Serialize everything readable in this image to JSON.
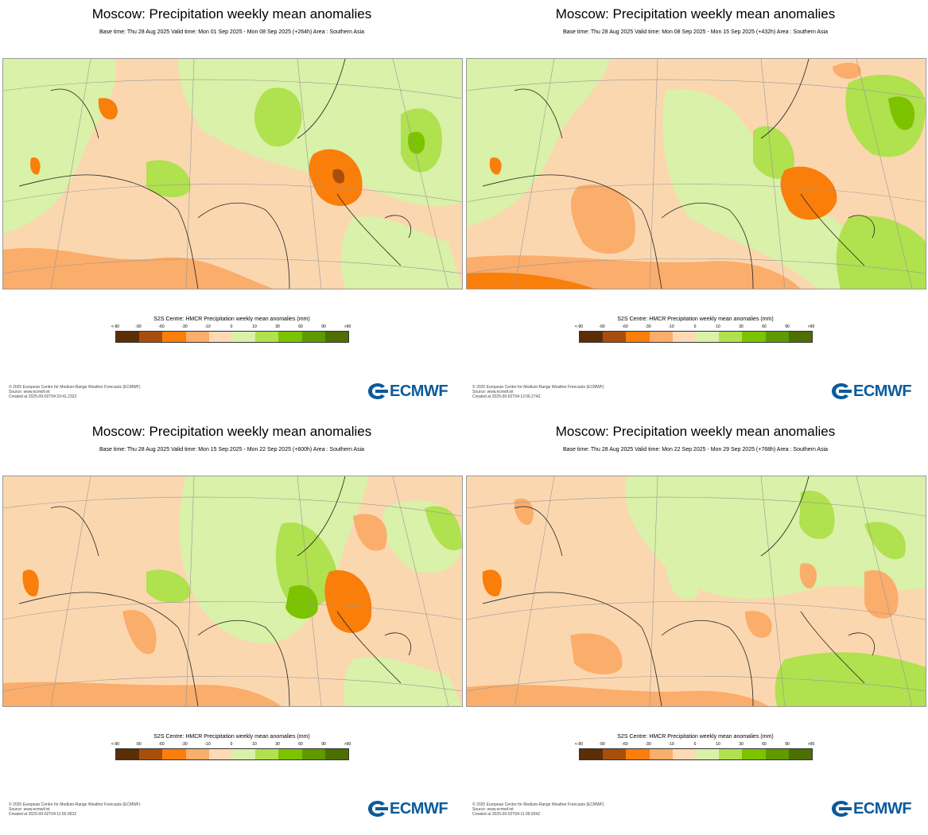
{
  "colors": {
    "logo": "#0a5a9c",
    "legend_bins": [
      "#5c2e06",
      "#a84e0c",
      "#f97e0a",
      "#fbad6b",
      "#fdd9b4",
      "#d9f1a8",
      "#b0e14f",
      "#7cc300",
      "#5f9a00",
      "#4c6f00"
    ]
  },
  "legend": {
    "title": "S2S Centre: HMCR Precipitation weekly mean anomalies (mm)",
    "ticks": [
      "<-90",
      "-90",
      "-60",
      "-30",
      "-10",
      "0",
      "10",
      "30",
      "60",
      "90",
      ">90"
    ]
  },
  "footer": {
    "copyright": "© 2025 European Centre for Medium-Range Weather Forecasts (ECMWF)",
    "source": "Source: www.ecmwf.int"
  },
  "logo_text": "ECMWF",
  "panels": [
    {
      "title": "Moscow: Precipitation weekly mean anomalies",
      "subtitle": "Base time: Thu 28 Aug 2025 Valid time: Mon 01 Sep 2025 - Mon 08 Sep 2025 (+264h) Area : Southern Asia",
      "created": "Created at 2025-09-02T04:10:41.232Z"
    },
    {
      "title": "Moscow: Precipitation weekly mean anomalies",
      "subtitle": "Base time: Thu 28 Aug 2025 Valid time: Mon 08 Sep 2025 - Mon 15 Sep 2025 (+432h) Area : Southern Asia",
      "created": "Created at 2025-09-02T04:12:06.274Z"
    },
    {
      "title": "Moscow: Precipitation weekly mean anomalies",
      "subtitle": "Base time: Thu 28 Aug 2025 Valid time: Mon 15 Sep 2025 - Mon 22 Sep 2025 (+600h) Area : Southern Asia",
      "created": "Created at 2025-09-02T04:11:55.063Z"
    },
    {
      "title": "Moscow: Precipitation weekly mean anomalies",
      "subtitle": "Base time: Thu 28 Aug 2025 Valid time: Mon 22 Sep 2025 - Mon 29 Sep 2025 (+768h) Area : Southern Asia",
      "created": "Created at 2025-09-02T04:11:39.934Z"
    }
  ]
}
